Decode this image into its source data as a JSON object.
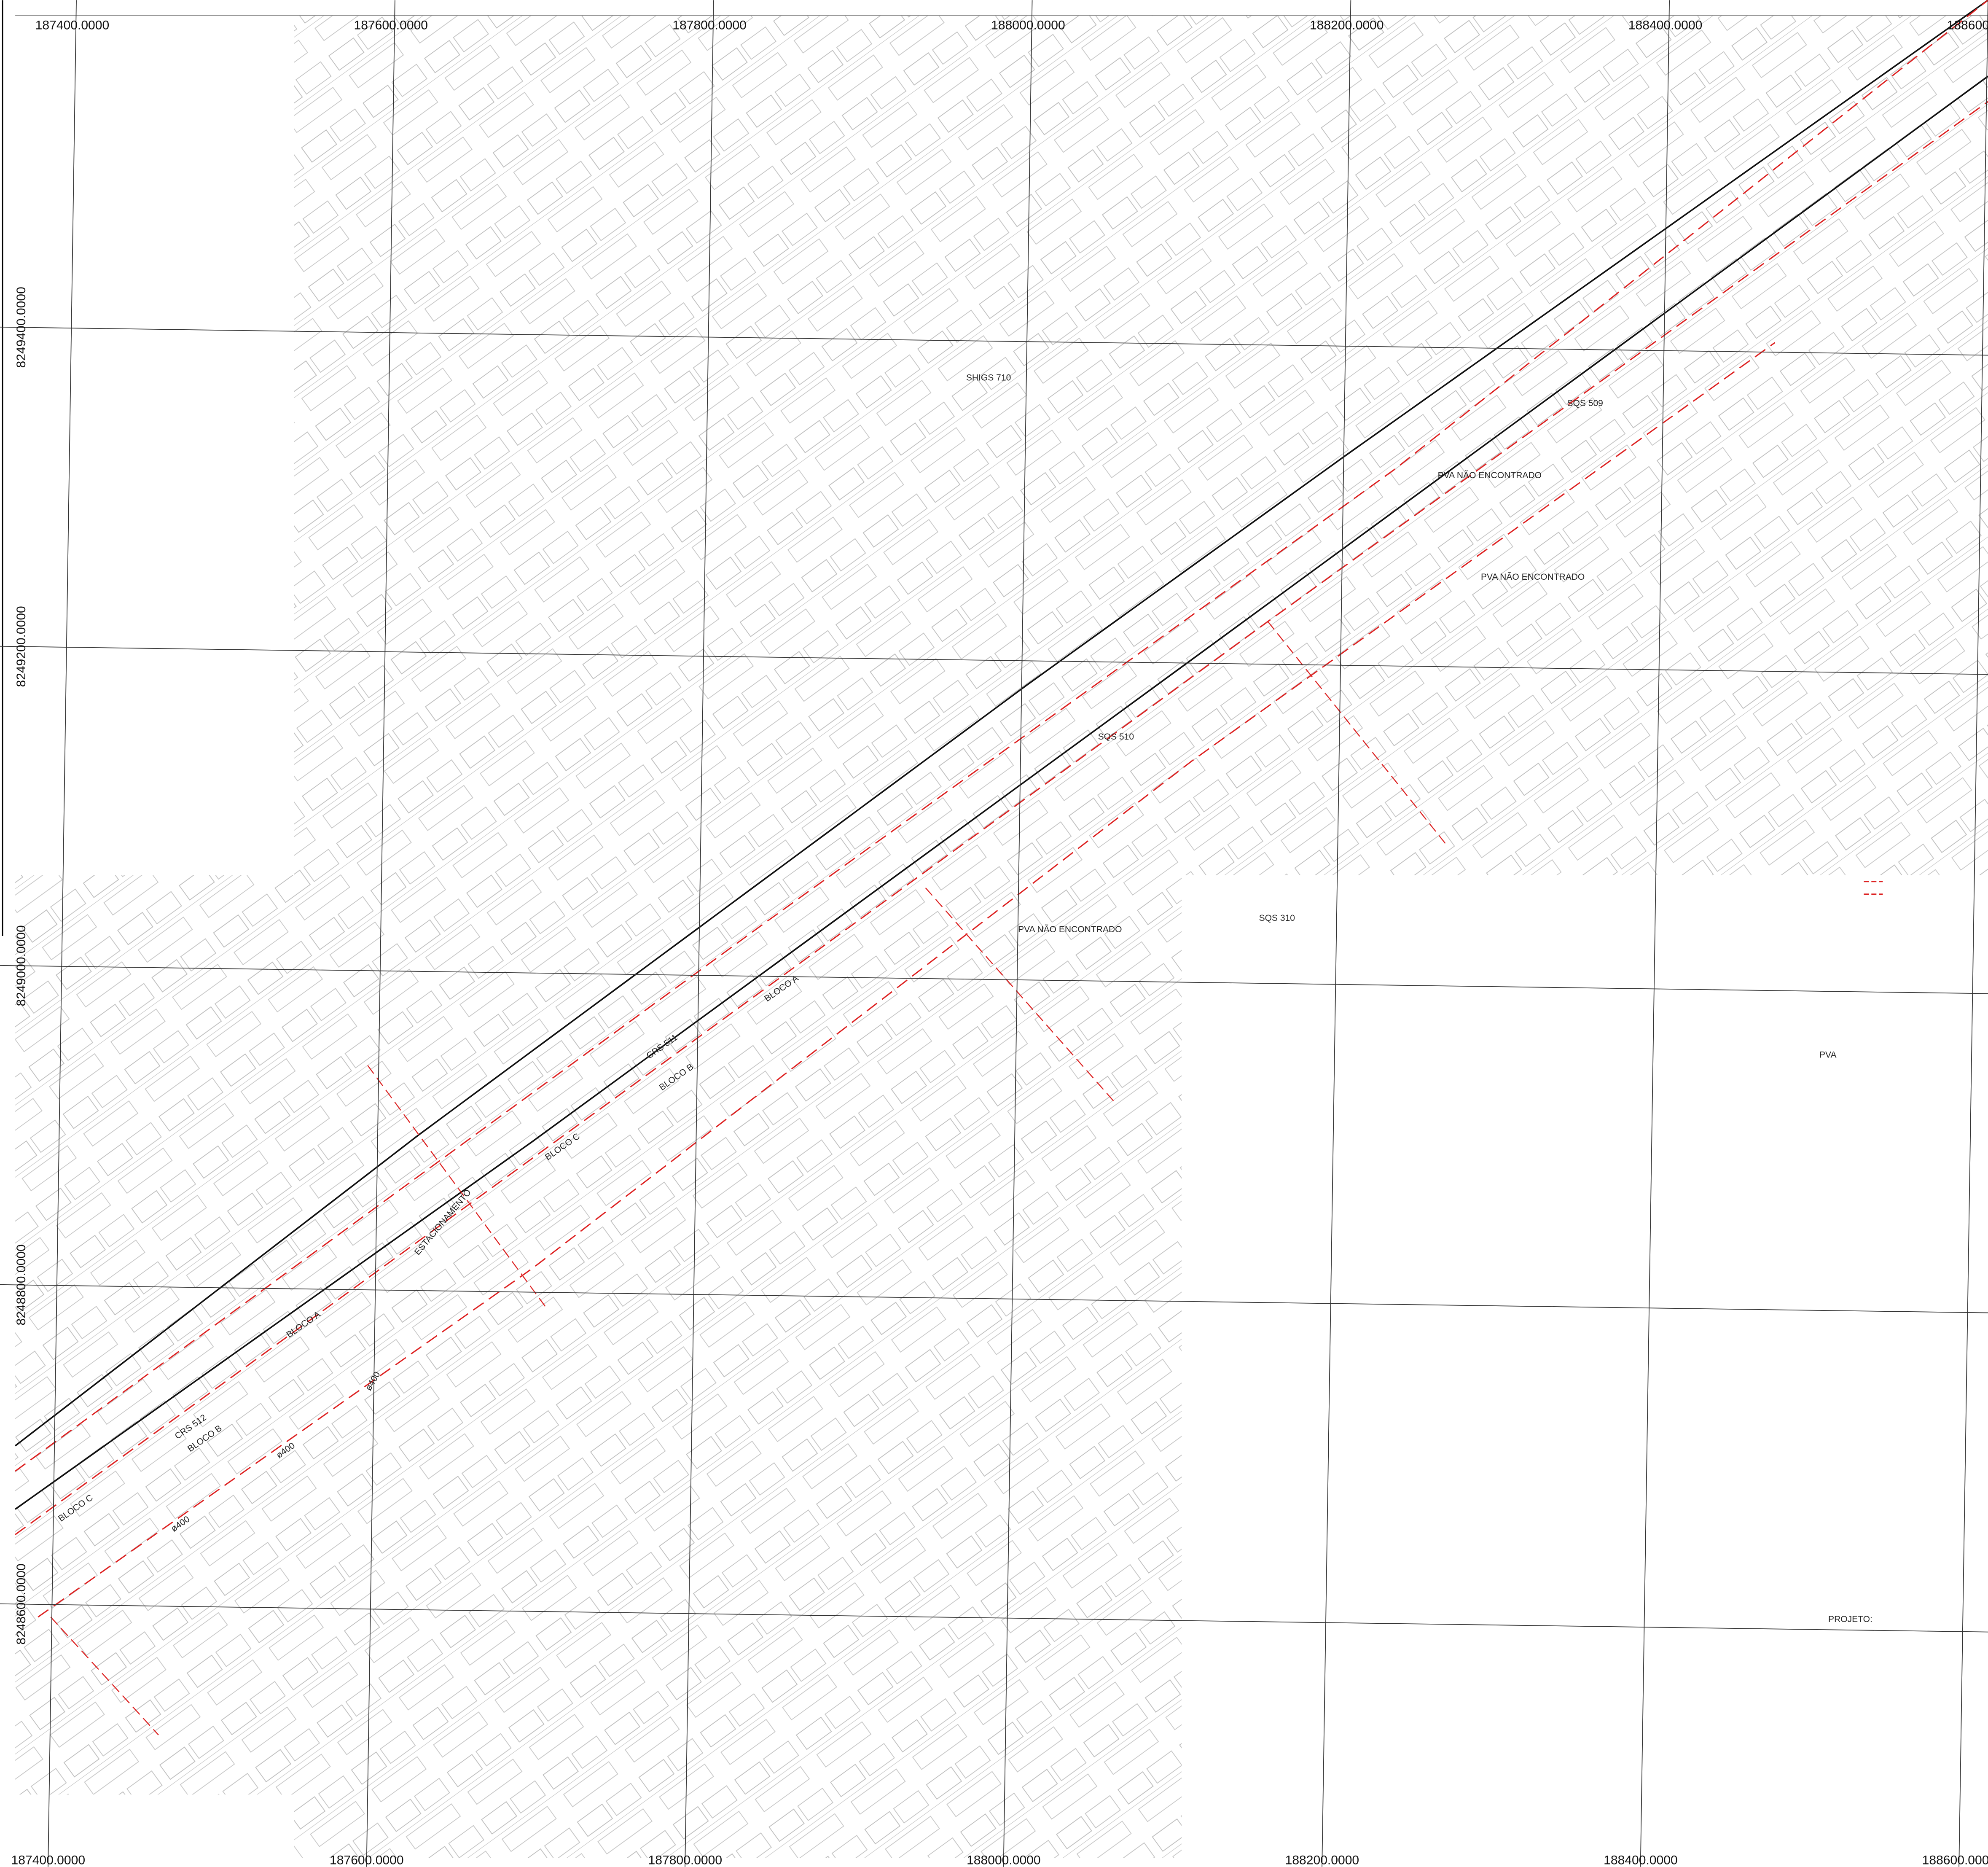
{
  "map": {
    "eastings_top": [
      "187400.0000",
      "187600.0000",
      "187800.0000",
      "188000.0000",
      "188200.0000",
      "188400.0000",
      "188600.0000"
    ],
    "eastings_bottom": [
      "187400.0000",
      "187600.0000",
      "187800.0000",
      "188000.0000",
      "188200.0000",
      "188400.0000",
      "188600.0000"
    ],
    "northings": [
      "8249400.0000",
      "8249200.0000",
      "8249000.0000",
      "8248800.0000",
      "8248600.0000"
    ],
    "labels": [
      "SHIGS 710",
      "SQS 509",
      "SQS 510",
      "SQS 310",
      "CRS 511",
      "BLOCO B",
      "BLOCO A",
      "BLOCO C",
      "BLOCO A",
      "CRS 512",
      "BLOCO B",
      "BLOCO C",
      "ESTACIONAMENTO",
      "PROJETO:",
      "PVA",
      "PVA NÃO ENCONTRADO",
      "PVA NÃO ENCONTRADO",
      "PVA NÃO ENCONTRADO",
      "ø400",
      "ø400",
      "ø400"
    ]
  }
}
